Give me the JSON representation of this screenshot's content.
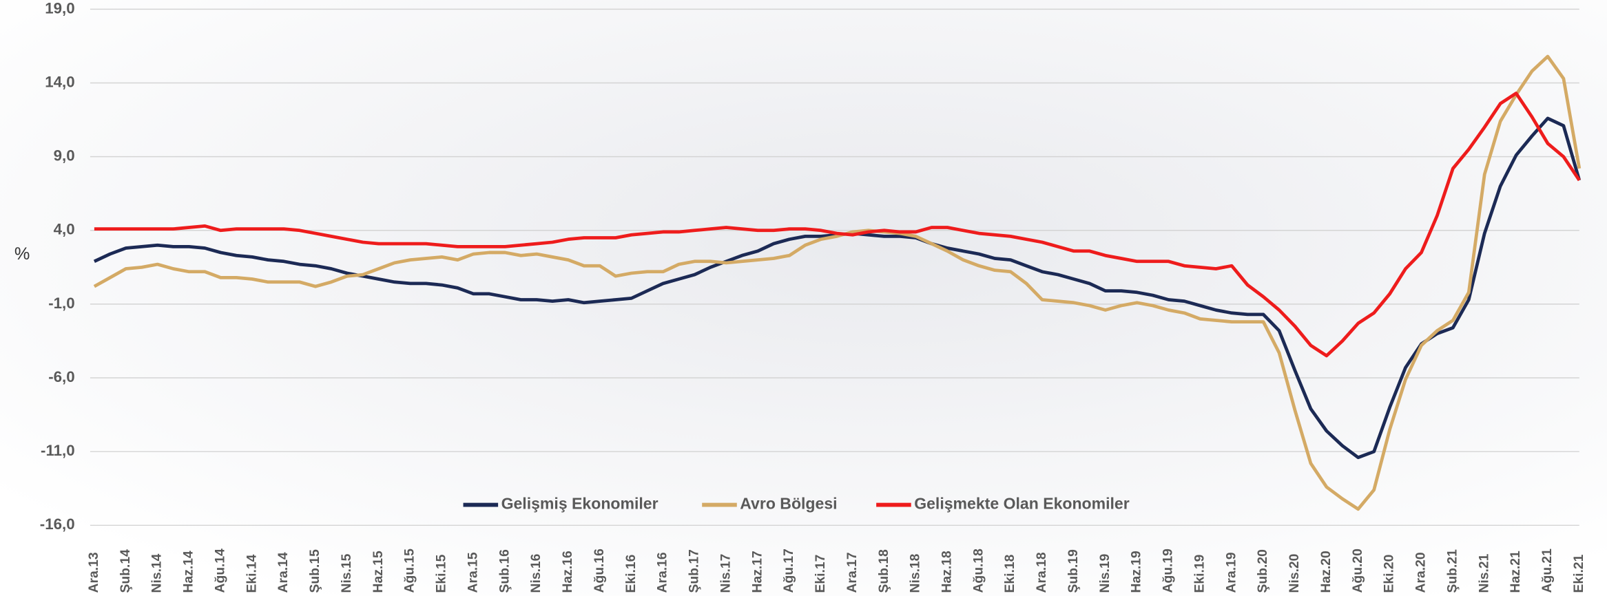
{
  "chart_data": {
    "type": "line",
    "y_label": "%",
    "categories": [
      "Ara.13",
      null,
      "Şub.14",
      null,
      "Nis.14",
      null,
      "Haz.14",
      null,
      "Ağu.14",
      null,
      "Eki.14",
      null,
      "Ara.14",
      null,
      "Şub.15",
      null,
      "Nis.15",
      null,
      "Haz.15",
      null,
      "Ağu.15",
      null,
      "Eki.15",
      null,
      "Ara.15",
      null,
      "Şub.16",
      null,
      "Nis.16",
      null,
      "Haz.16",
      null,
      "Ağu.16",
      null,
      "Eki.16",
      null,
      "Ara.16",
      null,
      "Şub.17",
      null,
      "Nis.17",
      null,
      "Haz.17",
      null,
      "Ağu.17",
      null,
      "Eki.17",
      null,
      "Ara.17",
      null,
      "Şub.18",
      null,
      "Nis.18",
      null,
      "Haz.18",
      null,
      "Ağu.18",
      null,
      "Eki.18",
      null,
      "Ara.18",
      null,
      "Şub.19",
      null,
      "Nis.19",
      null,
      "Haz.19",
      null,
      "Ağu.19",
      null,
      "Eki.19",
      null,
      "Ara.19",
      null,
      "Şub.20",
      null,
      "Nis.20",
      null,
      "Haz.20",
      null,
      "Ağu.20",
      null,
      "Eki.20",
      null,
      "Ara.20",
      null,
      "Şub.21",
      null,
      "Nis.21",
      null,
      "Haz.21",
      null,
      "Ağu.21",
      null,
      "Eki.21"
    ],
    "series": [
      {
        "name": "Gelişmiş Ekonomiler",
        "color": "#1c2a55",
        "values": [
          1.9,
          2.4,
          2.8,
          2.9,
          3.0,
          2.9,
          2.9,
          2.8,
          2.5,
          2.3,
          2.2,
          2.0,
          1.9,
          1.7,
          1.6,
          1.4,
          1.1,
          0.9,
          0.7,
          0.5,
          0.4,
          0.4,
          0.3,
          0.1,
          -0.3,
          -0.3,
          -0.5,
          -0.7,
          -0.7,
          -0.8,
          -0.7,
          -0.9,
          -0.8,
          -0.7,
          -0.6,
          -0.1,
          0.4,
          0.7,
          1.0,
          1.5,
          1.9,
          2.3,
          2.6,
          3.1,
          3.4,
          3.6,
          3.6,
          3.7,
          3.8,
          3.7,
          3.6,
          3.6,
          3.5,
          3.1,
          2.8,
          2.6,
          2.4,
          2.1,
          2.0,
          1.6,
          1.2,
          1.0,
          0.7,
          0.4,
          -0.1,
          -0.1,
          -0.2,
          -0.4,
          -0.7,
          -0.8,
          -1.1,
          -1.4,
          -1.6,
          -1.7,
          -1.7,
          -2.8,
          -5.5,
          -8.1,
          -9.6,
          -10.6,
          -11.4,
          -11.0,
          -8.0,
          -5.3,
          -3.7,
          -3.0,
          -2.6,
          -0.7,
          3.8,
          7.0,
          9.1,
          10.4,
          11.6,
          11.1,
          7.4
        ]
      },
      {
        "name": "Avro Bölgesi",
        "color": "#d4aa65",
        "values": [
          0.2,
          0.8,
          1.4,
          1.5,
          1.7,
          1.4,
          1.2,
          1.2,
          0.8,
          0.8,
          0.7,
          0.5,
          0.5,
          0.5,
          0.2,
          0.5,
          0.9,
          1.0,
          1.4,
          1.8,
          2.0,
          2.1,
          2.2,
          2.0,
          2.4,
          2.5,
          2.5,
          2.3,
          2.4,
          2.2,
          2.0,
          1.6,
          1.6,
          0.9,
          1.1,
          1.2,
          1.2,
          1.7,
          1.9,
          1.9,
          1.8,
          1.9,
          2.0,
          2.1,
          2.3,
          3.0,
          3.4,
          3.6,
          3.9,
          4.0,
          3.9,
          3.8,
          3.6,
          3.1,
          2.6,
          2.0,
          1.6,
          1.3,
          1.2,
          0.4,
          -0.7,
          -0.8,
          -0.9,
          -1.1,
          -1.4,
          -1.1,
          -0.9,
          -1.1,
          -1.4,
          -1.6,
          -2.0,
          -2.1,
          -2.2,
          -2.2,
          -2.2,
          -4.3,
          -8.2,
          -11.8,
          -13.4,
          -14.2,
          -14.9,
          -13.6,
          -9.5,
          -6.1,
          -3.8,
          -2.8,
          -2.1,
          -0.2,
          7.8,
          11.4,
          13.2,
          14.8,
          15.8,
          14.3,
          8.2
        ]
      },
      {
        "name": "Gelişmekte Olan Ekonomiler",
        "color": "#ee1c1c",
        "values": [
          4.1,
          4.1,
          4.1,
          4.1,
          4.1,
          4.1,
          4.2,
          4.3,
          4.0,
          4.1,
          4.1,
          4.1,
          4.1,
          4.0,
          3.8,
          3.6,
          3.4,
          3.2,
          3.1,
          3.1,
          3.1,
          3.1,
          3.0,
          2.9,
          2.9,
          2.9,
          2.9,
          3.0,
          3.1,
          3.2,
          3.4,
          3.5,
          3.5,
          3.5,
          3.7,
          3.8,
          3.9,
          3.9,
          4.0,
          4.1,
          4.2,
          4.1,
          4.0,
          4.0,
          4.1,
          4.1,
          4.0,
          3.8,
          3.7,
          3.9,
          4.0,
          3.9,
          3.9,
          4.2,
          4.2,
          4.0,
          3.8,
          3.7,
          3.6,
          3.4,
          3.2,
          2.9,
          2.6,
          2.6,
          2.3,
          2.1,
          1.9,
          1.9,
          1.9,
          1.6,
          1.5,
          1.4,
          1.6,
          0.3,
          -0.5,
          -1.4,
          -2.5,
          -3.8,
          -4.5,
          -3.5,
          -2.3,
          -1.6,
          -0.3,
          1.4,
          2.5,
          5.0,
          8.2,
          9.5,
          11.0,
          12.6,
          13.3,
          11.7,
          9.9,
          9.0,
          7.4
        ]
      }
    ],
    "ylim": [
      -16,
      19
    ],
    "yticks": [
      {
        "value": -16,
        "label": "-16,0"
      },
      {
        "value": -11,
        "label": "-11,0"
      },
      {
        "value": -6,
        "label": "-6,0"
      },
      {
        "value": -1,
        "label": "-1,0"
      },
      {
        "value": 4,
        "label": "4,0"
      },
      {
        "value": 9,
        "label": "9,0"
      },
      {
        "value": 14,
        "label": "14,0"
      },
      {
        "value": 19,
        "label": "19,0"
      }
    ],
    "grid": true,
    "legend": "bottom"
  }
}
